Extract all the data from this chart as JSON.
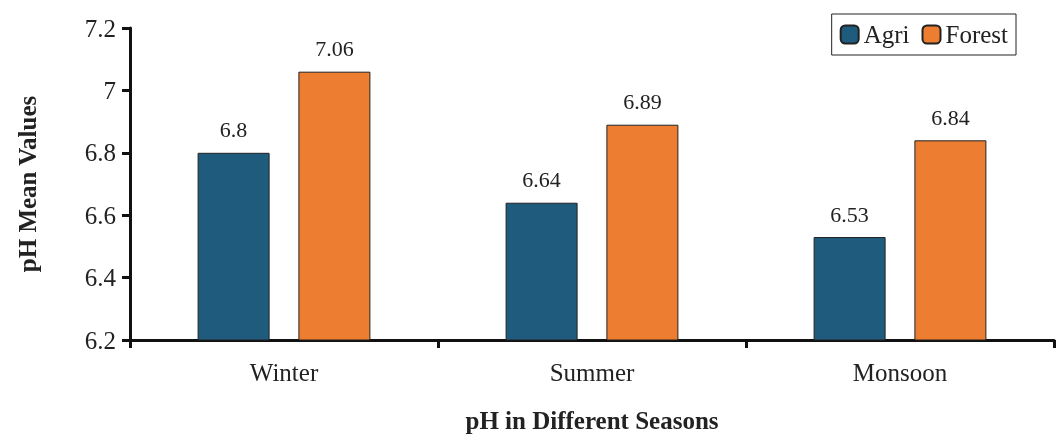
{
  "chart_data": {
    "type": "bar",
    "xlabel": "pH in Different Seasons",
    "ylabel": "pH Mean Values",
    "categories": [
      "Winter",
      "Summer",
      "Monsoon"
    ],
    "series": [
      {
        "name": "Agri",
        "color": "#1f5b7d",
        "values": [
          6.8,
          6.64,
          6.53
        ]
      },
      {
        "name": "Forest",
        "color": "#ed7d31",
        "values": [
          7.06,
          6.89,
          6.84
        ]
      }
    ],
    "ylim": [
      6.2,
      7.2
    ],
    "yticks": [
      6.2,
      6.4,
      6.6,
      6.8,
      7,
      7.2
    ],
    "grid": false,
    "legend": "top right",
    "data_labels": true
  }
}
